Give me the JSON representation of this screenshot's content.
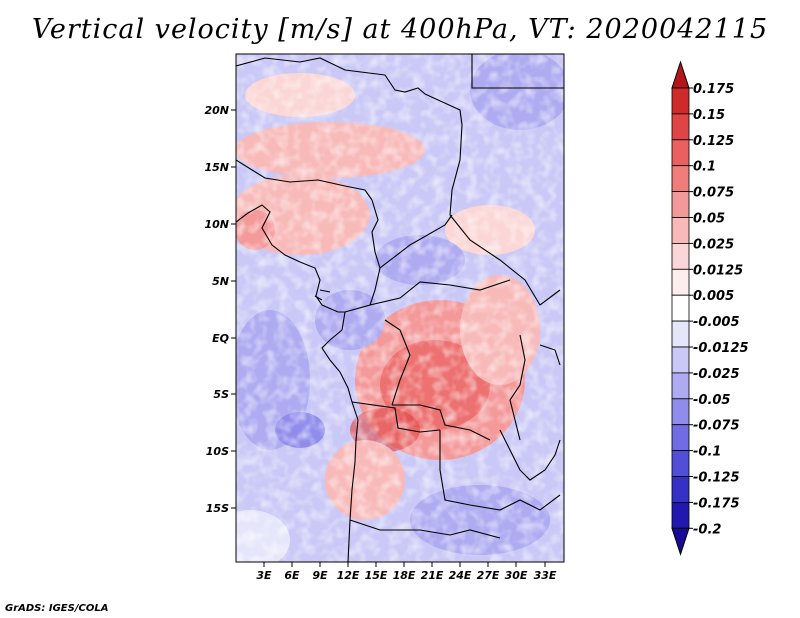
{
  "title": "Vertical velocity [m/s] at 400hPa, VT: 2020042115",
  "credit": "GrADS: IGES/COLA",
  "map": {
    "lat_labels": [
      "20N",
      "15N",
      "10N",
      "5N",
      "EQ",
      "5S",
      "10S",
      "15S"
    ],
    "lon_labels": [
      "3E",
      "6E",
      "9E",
      "12E",
      "15E",
      "18E",
      "21E",
      "24E",
      "27E",
      "30E",
      "33E"
    ]
  },
  "colorbar": {
    "labels": [
      "0.175",
      "0.15",
      "0.125",
      "0.1",
      "0.075",
      "0.05",
      "0.025",
      "0.0125",
      "0.005",
      "-0.005",
      "-0.0125",
      "-0.025",
      "-0.05",
      "-0.075",
      "-0.1",
      "-0.125",
      "-0.175",
      "-0.2"
    ],
    "colors": [
      "#b4161b",
      "#cf2a2a",
      "#e04545",
      "#ea6060",
      "#f07d7a",
      "#f4999a",
      "#f8b9b9",
      "#fbd6d6",
      "#fdeeee",
      "#ffffff",
      "#e6e6fb",
      "#c9c8f6",
      "#aeabf1",
      "#8f8ceb",
      "#706de4",
      "#514ed8",
      "#3730c4",
      "#2218b0",
      "#180a96"
    ]
  }
}
